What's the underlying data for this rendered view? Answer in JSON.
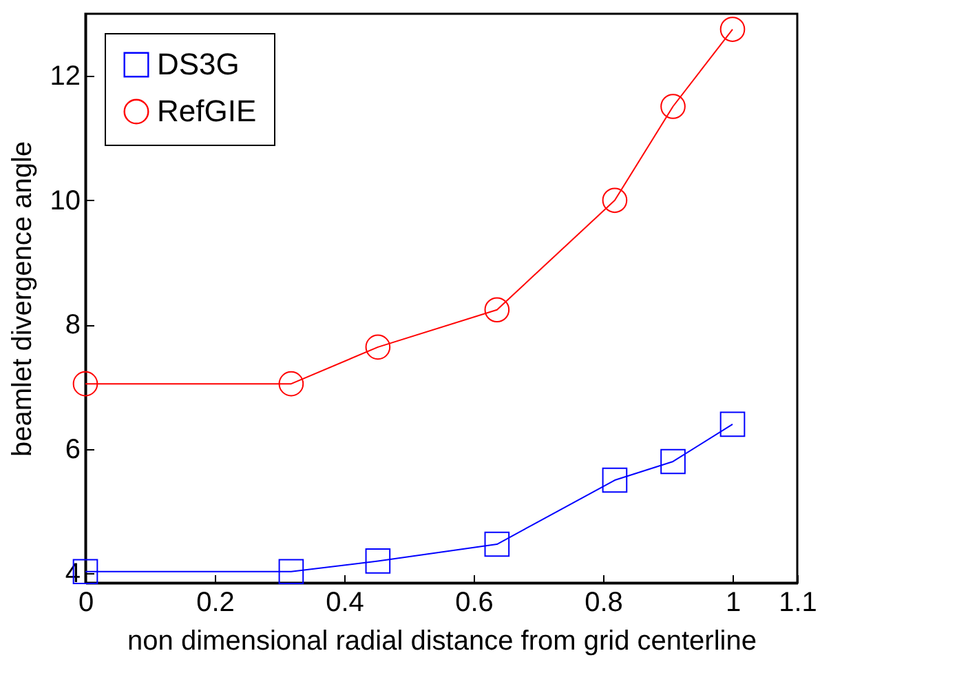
{
  "chart_data": {
    "type": "line",
    "xlabel": "non dimensional radial distance from grid centerline",
    "ylabel": "beamlet divergence angle",
    "x": [
      0,
      0.318,
      0.452,
      0.636,
      0.818,
      0.908,
      1
    ],
    "series": [
      {
        "name": "DS3G",
        "color": "#0000ff",
        "marker": "square",
        "values": [
          4.03,
          4.03,
          4.2,
          4.47,
          5.5,
          5.8,
          6.4
        ]
      },
      {
        "name": "RefGIE",
        "color": "#ff0000",
        "marker": "circle",
        "values": [
          7.05,
          7.05,
          7.64,
          8.24,
          10.0,
          11.51,
          12.75
        ]
      }
    ],
    "xlim": [
      0,
      1.1
    ],
    "xticks": [
      0,
      0.2,
      0.4,
      0.6,
      0.8,
      1,
      1.1
    ],
    "ylim": [
      3.85,
      13
    ],
    "yticks": [
      4,
      6,
      8,
      10,
      12
    ],
    "grid": false,
    "legend": "top left",
    "line_style": "solid"
  }
}
